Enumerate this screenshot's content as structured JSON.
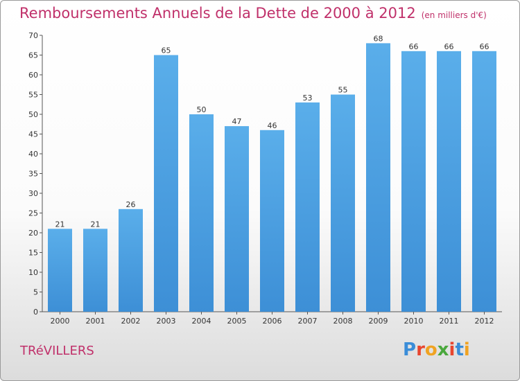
{
  "chart_data": {
    "type": "bar",
    "title": "Remboursements Annuels de la Dette de 2000 à 2012",
    "subtitle": "(en milliers d'€)",
    "categories": [
      "2000",
      "2001",
      "2002",
      "2003",
      "2004",
      "2005",
      "2006",
      "2007",
      "2008",
      "2009",
      "2010",
      "2011",
      "2012"
    ],
    "values": [
      21,
      21,
      26,
      65,
      50,
      47,
      46,
      53,
      55,
      68,
      66,
      66,
      66
    ],
    "data_labels": [
      "21",
      "21",
      "26",
      "65",
      "50",
      "47",
      "46",
      "53",
      "55",
      "68",
      "66",
      "66",
      "66"
    ],
    "y_ticks": [
      0,
      5,
      10,
      15,
      20,
      25,
      30,
      35,
      40,
      45,
      50,
      55,
      60,
      65,
      70
    ],
    "ylim": [
      0,
      70
    ],
    "grid": false,
    "legend": "none",
    "bar_color": "#3d8fd6",
    "bar_color_light": "#5aaeea",
    "title_color": "#c0306a"
  },
  "footer": {
    "commune": "TRéVILLERS",
    "logo_letters": [
      "P",
      "r",
      "o",
      "x",
      "i",
      "t",
      "i"
    ],
    "logo_colors": [
      "#3a8dd8",
      "#e8462f",
      "#f0a322",
      "#4aa83d",
      "#e8462f",
      "#3a8dd8",
      "#f0a322"
    ]
  }
}
